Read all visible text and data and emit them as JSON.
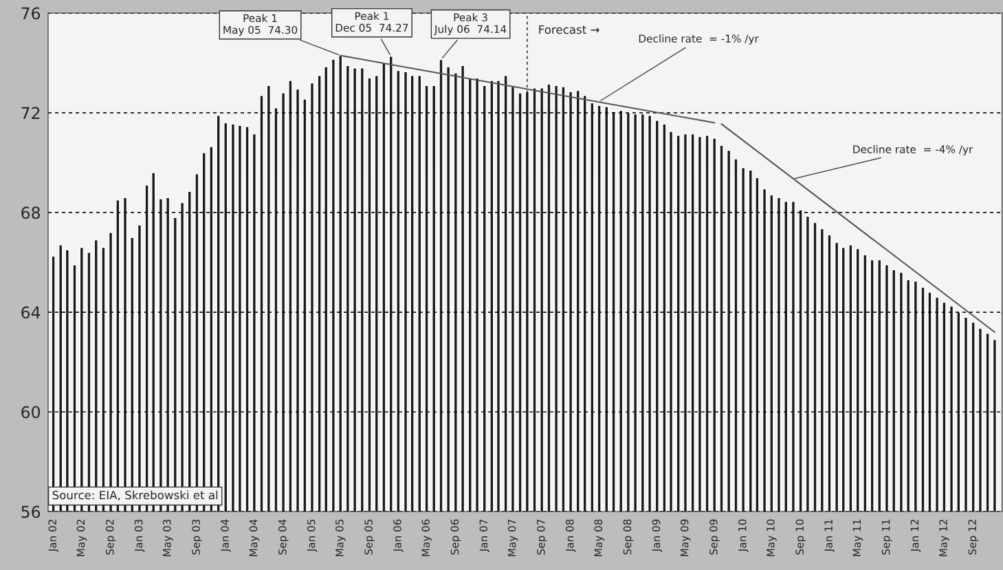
{
  "chart_data": {
    "type": "bar",
    "x": [
      "2002-01",
      "2002-02",
      "2002-03",
      "2002-04",
      "2002-05",
      "2002-06",
      "2002-07",
      "2002-08",
      "2002-09",
      "2002-10",
      "2002-11",
      "2002-12",
      "2003-01",
      "2003-02",
      "2003-03",
      "2003-04",
      "2003-05",
      "2003-06",
      "2003-07",
      "2003-08",
      "2003-09",
      "2003-10",
      "2003-11",
      "2003-12",
      "2004-01",
      "2004-02",
      "2004-03",
      "2004-04",
      "2004-05",
      "2004-06",
      "2004-07",
      "2004-08",
      "2004-09",
      "2004-10",
      "2004-11",
      "2004-12",
      "2005-01",
      "2005-02",
      "2005-03",
      "2005-04",
      "2005-05",
      "2005-06",
      "2005-07",
      "2005-08",
      "2005-09",
      "2005-10",
      "2005-11",
      "2005-12",
      "2006-01",
      "2006-02",
      "2006-03",
      "2006-04",
      "2006-05",
      "2006-06",
      "2006-07",
      "2006-08",
      "2006-09",
      "2006-10",
      "2006-11",
      "2006-12",
      "2007-01",
      "2007-02",
      "2007-03",
      "2007-04",
      "2007-05",
      "2007-06",
      "2007-07",
      "2007-08",
      "2007-09",
      "2007-10",
      "2007-11",
      "2007-12",
      "2008-01",
      "2008-02",
      "2008-03",
      "2008-04",
      "2008-05",
      "2008-06",
      "2008-07",
      "2008-08",
      "2008-09",
      "2008-10",
      "2008-11",
      "2008-12",
      "2009-01",
      "2009-02",
      "2009-03",
      "2009-04",
      "2009-05",
      "2009-06",
      "2009-07",
      "2009-08",
      "2009-09",
      "2009-10",
      "2009-11",
      "2009-12",
      "2010-01",
      "2010-02",
      "2010-03",
      "2010-04",
      "2010-05",
      "2010-06",
      "2010-07",
      "2010-08",
      "2010-09",
      "2010-10",
      "2010-11",
      "2010-12",
      "2011-01",
      "2011-02",
      "2011-03",
      "2011-04",
      "2011-05",
      "2011-06",
      "2011-07",
      "2011-08",
      "2011-09",
      "2011-10",
      "2011-11",
      "2011-12",
      "2012-01",
      "2012-02",
      "2012-03",
      "2012-04",
      "2012-05",
      "2012-06",
      "2012-07",
      "2012-08",
      "2012-09",
      "2012-10",
      "2012-11",
      "2012-12"
    ],
    "series": [
      {
        "color": "#1a1a1a",
        "values": [
          66.25,
          66.7,
          66.5,
          65.9,
          66.6,
          66.4,
          66.9,
          66.6,
          67.2,
          68.5,
          68.6,
          67.0,
          67.5,
          69.1,
          69.6,
          68.55,
          68.6,
          67.8,
          68.4,
          68.85,
          69.55,
          70.4,
          70.65,
          71.9,
          71.6,
          71.55,
          71.5,
          71.45,
          71.15,
          72.7,
          73.1,
          72.2,
          72.8,
          73.3,
          72.95,
          72.55,
          73.2,
          73.5,
          73.85,
          74.15,
          74.3,
          73.9,
          73.8,
          73.8,
          73.4,
          73.5,
          74.0,
          74.27,
          73.7,
          73.65,
          73.5,
          73.5,
          73.1,
          73.1,
          74.14,
          73.85,
          73.6,
          73.9,
          73.4,
          73.4,
          73.1,
          73.3,
          73.3,
          73.5,
          73.05,
          72.8,
          72.85,
          73.0,
          73.0,
          73.15,
          73.1,
          73.05,
          72.85,
          72.9,
          72.7,
          72.4,
          72.3,
          72.25,
          72.05,
          72.1,
          72.0,
          71.95,
          71.95,
          71.9,
          71.7,
          71.55,
          71.25,
          71.1,
          71.15,
          71.15,
          71.05,
          71.1,
          70.98,
          70.7,
          70.5,
          70.15,
          69.8,
          69.7,
          69.4,
          68.95,
          68.7,
          68.6,
          68.45,
          68.45,
          68.1,
          67.85,
          67.6,
          67.35,
          67.1,
          66.8,
          66.6,
          66.7,
          66.55,
          66.3,
          66.1,
          66.1,
          65.9,
          65.7,
          65.6,
          65.3,
          65.25,
          65.0,
          64.8,
          64.6,
          64.4,
          64.25,
          64.0,
          63.8,
          63.6,
          63.35,
          63.15,
          62.9
        ]
      },
      {
        "type": "line",
        "color": "#555555",
        "x": [
          "2005-05",
          "2009-09"
        ],
        "values": [
          74.3,
          71.6
        ]
      },
      {
        "type": "line",
        "color": "#555555",
        "x": [
          "2009-10",
          "2012-12"
        ],
        "values": [
          71.55,
          63.2
        ]
      }
    ],
    "xlim": [
      "2001-12-10",
      "2013-01-01"
    ],
    "xticks": [
      {
        "value": "2002-01",
        "label": "Jan 02"
      },
      {
        "value": "2002-05",
        "label": "May 02"
      },
      {
        "value": "2002-09",
        "label": "Sep 02"
      },
      {
        "value": "2003-01",
        "label": "Jan 03"
      },
      {
        "value": "2003-05",
        "label": "May 03"
      },
      {
        "value": "2003-09",
        "label": "Sep 03"
      },
      {
        "value": "2004-01",
        "label": "Jan 04"
      },
      {
        "value": "2004-05",
        "label": "May 04"
      },
      {
        "value": "2004-09",
        "label": "Sep 04"
      },
      {
        "value": "2005-01",
        "label": "Jan 05"
      },
      {
        "value": "2005-05",
        "label": "May 05"
      },
      {
        "value": "2005-09",
        "label": "Sep 05"
      },
      {
        "value": "2006-01",
        "label": "Jan 06"
      },
      {
        "value": "2006-05",
        "label": "May 06"
      },
      {
        "value": "2006-09",
        "label": "Sep 06"
      },
      {
        "value": "2007-01",
        "label": "Jan 07"
      },
      {
        "value": "2007-05",
        "label": "May 07"
      },
      {
        "value": "2007-09",
        "label": "Sep 07"
      },
      {
        "value": "2008-01",
        "label": "Jan 08"
      },
      {
        "value": "2008-05",
        "label": "May 08"
      },
      {
        "value": "2008-09",
        "label": "Sep 08"
      },
      {
        "value": "2009-01",
        "label": "Jan 09"
      },
      {
        "value": "2009-05",
        "label": "May 09"
      },
      {
        "value": "2009-09",
        "label": "Sep 09"
      },
      {
        "value": "2010-01",
        "label": "Jan 10"
      },
      {
        "value": "2010-05",
        "label": "May 10"
      },
      {
        "value": "2010-09",
        "label": "Sep 10"
      },
      {
        "value": "2011-01",
        "label": "Jan 11"
      },
      {
        "value": "2011-05",
        "label": "May 11"
      },
      {
        "value": "2011-09",
        "label": "Sep 11"
      },
      {
        "value": "2012-01",
        "label": "Jan 12"
      },
      {
        "value": "2012-05",
        "label": "May 12"
      },
      {
        "value": "2012-09",
        "label": "Sep 12"
      }
    ],
    "ylim": [
      56,
      76
    ],
    "yticks": [
      56,
      60,
      64,
      68,
      72,
      76
    ],
    "grid": "y",
    "ref_lines": [
      {
        "axis": "x",
        "value": "2007-07",
        "label": "Forecast →",
        "line_style": "dashed"
      }
    ],
    "annotations": [
      {
        "text": "Peak 1\nMay 05  74.30",
        "x": "2005-05",
        "y": 74.3
      },
      {
        "text": "Peak 1\nDec 05  74.27",
        "x": "2005-12",
        "y": 74.27
      },
      {
        "text": "Peak 3\nJuly 06  74.14",
        "x": "2006-07",
        "y": 74.14
      },
      {
        "text": "Decline rate  = -1% /yr",
        "x": "2008-05",
        "y": 72.45
      },
      {
        "text": "Decline rate  = -4% /yr",
        "x": "2010-08",
        "y": 69.35
      },
      "Source: EIA, Skrebowski et al"
    ]
  }
}
